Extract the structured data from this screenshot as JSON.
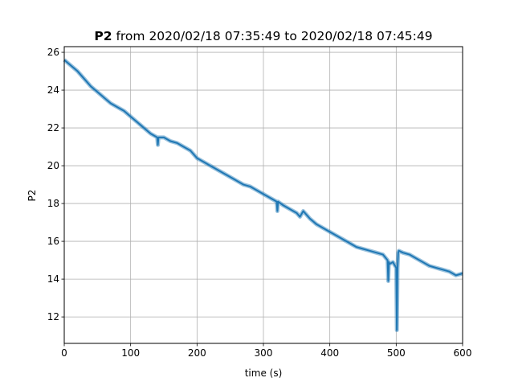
{
  "chart_data": {
    "type": "line",
    "title_bold": "P2",
    "title_rest": " from 2020/02/18 07:35:49 to 2020/02/18 07:45:49",
    "xlabel": "time (s)",
    "ylabel": "P2",
    "xlim": [
      0,
      600
    ],
    "ylim": [
      10.6,
      26.3
    ],
    "xticks": [
      0,
      100,
      200,
      300,
      400,
      500,
      600
    ],
    "yticks": [
      12,
      14,
      16,
      18,
      20,
      22,
      24,
      26
    ],
    "grid": true,
    "line_color": "#1f77b4",
    "series": [
      {
        "x": [
          0,
          10,
          20,
          30,
          40,
          50,
          60,
          70,
          80,
          90,
          100,
          110,
          120,
          130,
          140,
          141,
          142,
          150,
          160,
          170,
          180,
          190,
          200,
          210,
          220,
          230,
          240,
          250,
          260,
          270,
          280,
          290,
          300,
          310,
          320,
          321,
          322,
          330,
          340,
          350,
          355,
          360,
          370,
          380,
          390,
          400,
          410,
          420,
          430,
          440,
          450,
          460,
          470,
          480,
          487,
          488,
          489,
          490,
          495,
          500,
          501,
          502,
          503,
          504,
          510,
          520,
          530,
          540,
          550,
          560,
          570,
          580,
          590,
          600
        ],
        "y": [
          25.6,
          25.3,
          25.0,
          24.6,
          24.2,
          23.9,
          23.6,
          23.3,
          23.1,
          22.9,
          22.6,
          22.3,
          22.0,
          21.7,
          21.5,
          21.1,
          21.5,
          21.5,
          21.3,
          21.2,
          21.0,
          20.8,
          20.4,
          20.2,
          20.0,
          19.8,
          19.6,
          19.4,
          19.2,
          19.0,
          18.9,
          18.7,
          18.5,
          18.3,
          18.1,
          17.6,
          18.1,
          17.9,
          17.7,
          17.5,
          17.3,
          17.6,
          17.2,
          16.9,
          16.7,
          16.5,
          16.3,
          16.1,
          15.9,
          15.7,
          15.6,
          15.5,
          15.4,
          15.3,
          15.0,
          13.9,
          14.9,
          14.8,
          14.9,
          14.6,
          11.3,
          14.6,
          15.4,
          15.5,
          15.4,
          15.3,
          15.1,
          14.9,
          14.7,
          14.6,
          14.5,
          14.4,
          14.2,
          14.3
        ]
      }
    ]
  }
}
